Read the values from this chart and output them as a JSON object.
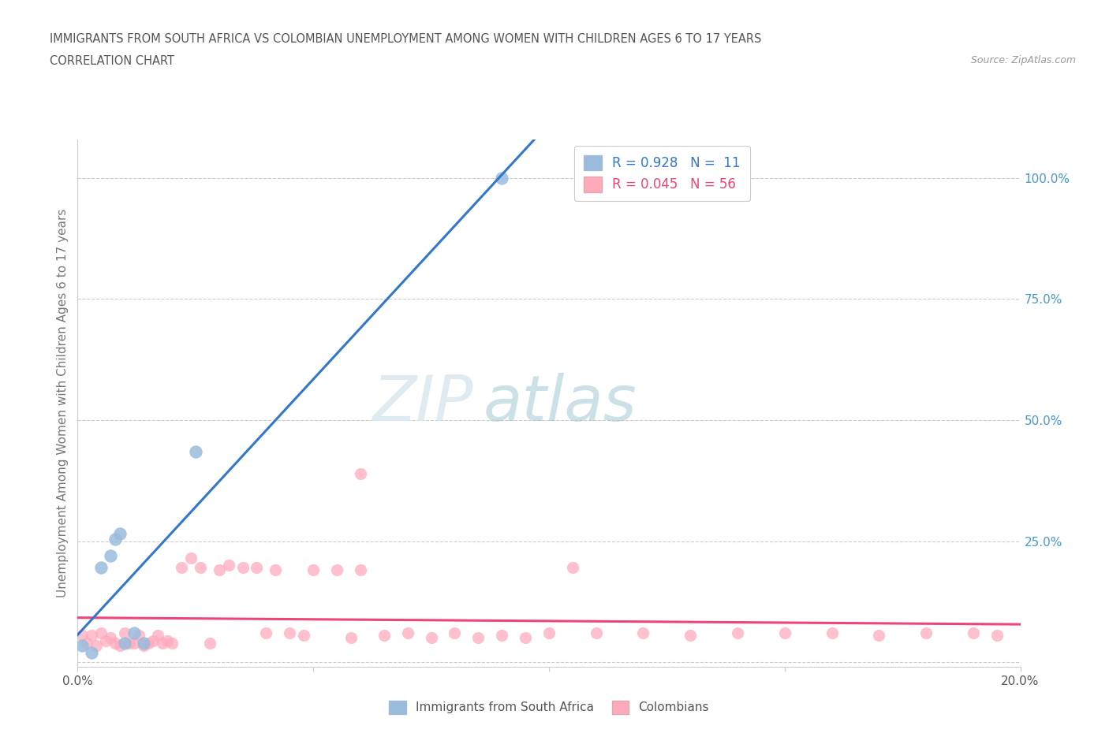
{
  "title_line1": "IMMIGRANTS FROM SOUTH AFRICA VS COLOMBIAN UNEMPLOYMENT AMONG WOMEN WITH CHILDREN AGES 6 TO 17 YEARS",
  "title_line2": "CORRELATION CHART",
  "source_text": "Source: ZipAtlas.com",
  "ylabel": "Unemployment Among Women with Children Ages 6 to 17 years",
  "xlim": [
    0.0,
    0.2
  ],
  "ylim": [
    -0.01,
    1.08
  ],
  "background_color": "#ffffff",
  "watermark_zip": "ZIP",
  "watermark_atlas": "atlas",
  "legend_r1": "R = 0.928",
  "legend_n1": "N =  11",
  "legend_r2": "R = 0.045",
  "legend_n2": "N = 56",
  "color_blue": "#99bbdd",
  "color_pink": "#ffaabb",
  "color_blue_line": "#3377cc",
  "color_pink_line": "#ee4477",
  "south_africa_x": [
    0.001,
    0.003,
    0.005,
    0.007,
    0.008,
    0.009,
    0.01,
    0.012,
    0.014,
    0.025,
    0.09
  ],
  "south_africa_y": [
    0.035,
    0.02,
    0.195,
    0.22,
    0.255,
    0.265,
    0.04,
    0.06,
    0.04,
    0.435,
    1.0
  ],
  "colombians_x": [
    0.001,
    0.002,
    0.003,
    0.004,
    0.005,
    0.006,
    0.007,
    0.008,
    0.009,
    0.01,
    0.011,
    0.012,
    0.013,
    0.014,
    0.015,
    0.016,
    0.017,
    0.018,
    0.019,
    0.02,
    0.022,
    0.024,
    0.026,
    0.028,
    0.03,
    0.032,
    0.035,
    0.038,
    0.04,
    0.042,
    0.045,
    0.048,
    0.05,
    0.055,
    0.058,
    0.06,
    0.065,
    0.07,
    0.075,
    0.08,
    0.085,
    0.09,
    0.095,
    0.1,
    0.105,
    0.11,
    0.12,
    0.13,
    0.14,
    0.15,
    0.16,
    0.17,
    0.18,
    0.19,
    0.195,
    0.06
  ],
  "colombians_y": [
    0.055,
    0.04,
    0.055,
    0.035,
    0.06,
    0.045,
    0.05,
    0.04,
    0.035,
    0.06,
    0.04,
    0.04,
    0.055,
    0.035,
    0.04,
    0.045,
    0.055,
    0.04,
    0.045,
    0.04,
    0.195,
    0.215,
    0.195,
    0.04,
    0.19,
    0.2,
    0.195,
    0.195,
    0.06,
    0.19,
    0.06,
    0.055,
    0.19,
    0.19,
    0.05,
    0.19,
    0.055,
    0.06,
    0.05,
    0.06,
    0.05,
    0.055,
    0.05,
    0.06,
    0.195,
    0.06,
    0.06,
    0.055,
    0.06,
    0.06,
    0.06,
    0.055,
    0.06,
    0.06,
    0.055,
    0.39
  ]
}
